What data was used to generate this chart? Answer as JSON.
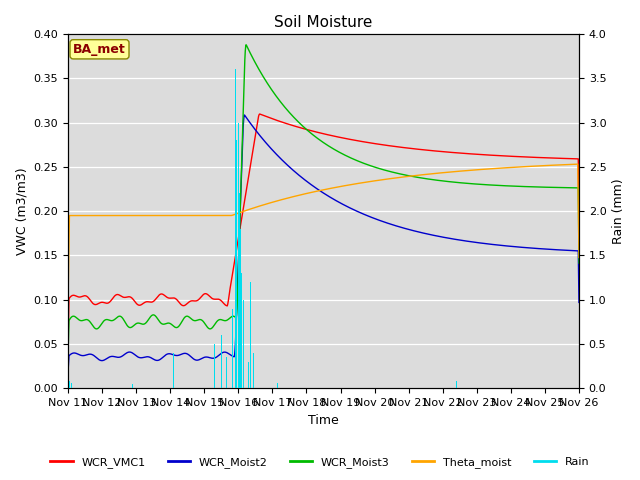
{
  "title": "Soil Moisture",
  "xlabel": "Time",
  "ylabel_left": "VWC (m3/m3)",
  "ylabel_right": "Rain (mm)",
  "ylim_left": [
    0.0,
    0.4
  ],
  "ylim_right": [
    0.0,
    4.0
  ],
  "yticks_left": [
    0.0,
    0.05,
    0.1,
    0.15,
    0.2,
    0.25,
    0.3,
    0.35,
    0.4
  ],
  "yticks_right": [
    0.0,
    0.5,
    1.0,
    1.5,
    2.0,
    2.5,
    3.0,
    3.5,
    4.0
  ],
  "x_labels": [
    "Nov 11",
    "Nov 12",
    "Nov 13",
    "Nov 14",
    "Nov 15",
    "Nov 16",
    "Nov 17",
    "Nov 18",
    "Nov 19",
    "Nov 20",
    "Nov 21",
    "Nov 22",
    "Nov 23",
    "Nov 24",
    "Nov 25",
    "Nov 26"
  ],
  "annotation_text": "BA_met",
  "annotation_color": "#8B0000",
  "annotation_bg": "#FFFF99",
  "bg_color": "#DCDCDC",
  "colors": {
    "WCR_VMC1": "#FF0000",
    "WCR_Moist2": "#0000CC",
    "WCR_Moist3": "#00BB00",
    "Theta_moist": "#FFA500",
    "Rain": "#00DDEE"
  },
  "n_days": 15,
  "event_day": 5.0,
  "n_points": 2160
}
